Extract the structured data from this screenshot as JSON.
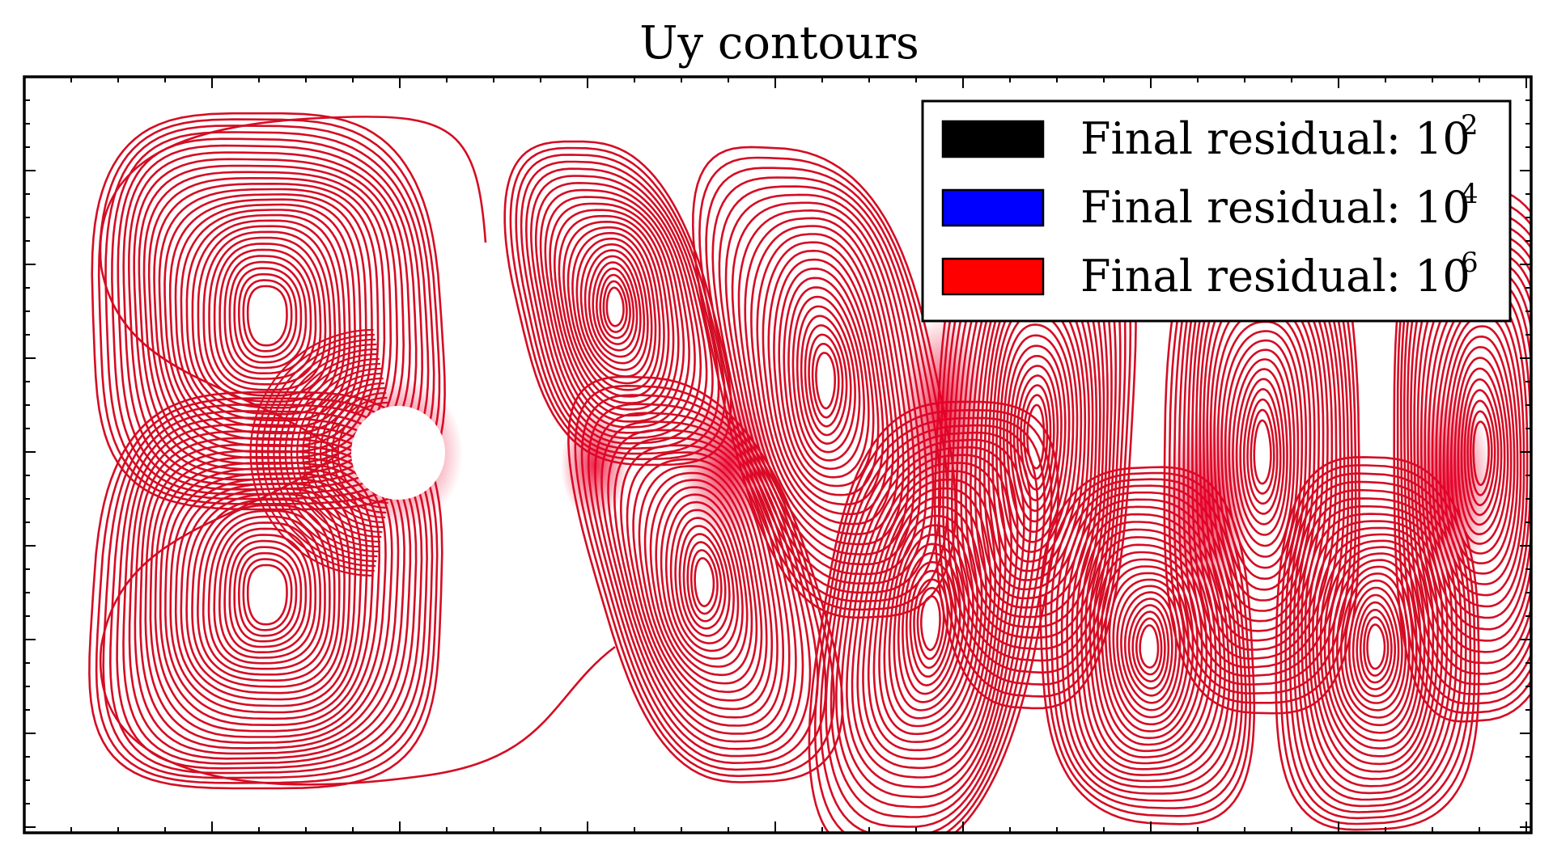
{
  "chart_data": {
    "type": "contour",
    "title": "Uy contours",
    "xlabel": "",
    "ylabel": "",
    "axis_tick_labels": "none",
    "grid": false,
    "legend_position": "top-right",
    "legend": [
      {
        "name": "Final residual: 10^2",
        "label": "Final residual: ",
        "base": "10",
        "exponent": "2",
        "color": "#000000"
      },
      {
        "name": "Final residual: 10^4",
        "label": "Final residual: ",
        "base": "10",
        "exponent": "4",
        "color": "#0000ff"
      },
      {
        "name": "Final residual: 10^6",
        "label": "Final residual: ",
        "base": "10",
        "exponent": "6",
        "color": "#ff0000"
      }
    ],
    "line_color": "#d40d24",
    "dense_color": "#e8002a",
    "features": {
      "cylinder": "circular obstacle at left-center with contours wrapped around it",
      "wake": "periodic alternating vortex wake extending to the right edge"
    }
  }
}
